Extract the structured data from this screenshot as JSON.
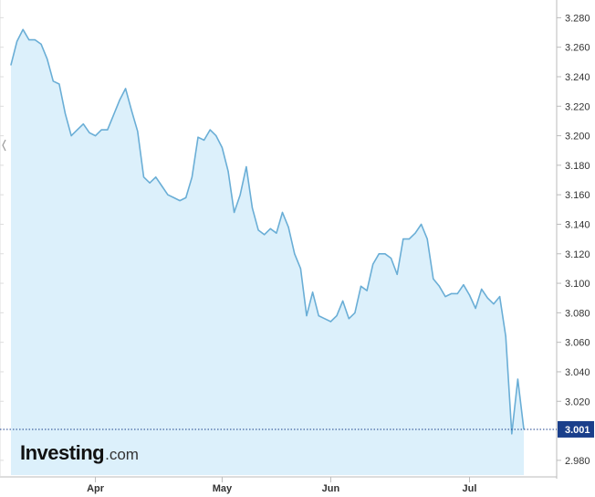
{
  "chart_data": {
    "type": "area",
    "title": "",
    "xlabel": "",
    "ylabel": "",
    "ylim": [
      2.97,
      3.292
    ],
    "yticks": [
      2.98,
      3.02,
      3.04,
      3.06,
      3.08,
      3.1,
      3.12,
      3.14,
      3.16,
      3.18,
      3.2,
      3.22,
      3.24,
      3.26,
      3.28
    ],
    "ytick_labels": [
      "2.980",
      "3.020",
      "3.040",
      "3.060",
      "3.080",
      "3.100",
      "3.120",
      "3.140",
      "3.160",
      "3.180",
      "3.200",
      "3.220",
      "3.240",
      "3.260",
      "3.280"
    ],
    "xticks": [
      {
        "label": "Apr",
        "index": 14
      },
      {
        "label": "May",
        "index": 35
      },
      {
        "label": "Jun",
        "index": 53
      },
      {
        "label": "Jul",
        "index": 76
      }
    ],
    "last_value": 3.001,
    "last_value_label": "3.001",
    "grid": false,
    "colors": {
      "line": "#6aaed6",
      "fill": "#dcf0fb",
      "last_label_bg": "#1a3f8b",
      "dotted_line": "#1a3f8b",
      "axis": "#bbbbbb"
    },
    "values": [
      3.248,
      3.264,
      3.272,
      3.265,
      3.265,
      3.262,
      3.252,
      3.237,
      3.235,
      3.215,
      3.2,
      3.204,
      3.208,
      3.202,
      3.2,
      3.204,
      3.204,
      3.214,
      3.224,
      3.232,
      3.217,
      3.203,
      3.172,
      3.168,
      3.172,
      3.166,
      3.16,
      3.158,
      3.156,
      3.158,
      3.172,
      3.199,
      3.197,
      3.204,
      3.2,
      3.192,
      3.176,
      3.148,
      3.16,
      3.179,
      3.151,
      3.136,
      3.133,
      3.137,
      3.134,
      3.148,
      3.138,
      3.12,
      3.11,
      3.078,
      3.094,
      3.078,
      3.076,
      3.074,
      3.078,
      3.088,
      3.076,
      3.08,
      3.098,
      3.095,
      3.113,
      3.12,
      3.12,
      3.117,
      3.106,
      3.13,
      3.13,
      3.134,
      3.14,
      3.13,
      3.103,
      3.098,
      3.091,
      3.093,
      3.093,
      3.099,
      3.092,
      3.083,
      3.096,
      3.09,
      3.086,
      3.091,
      3.064,
      2.998,
      3.035,
      3.001
    ]
  },
  "logo": {
    "word": "Investing",
    "suffix": ".com"
  }
}
